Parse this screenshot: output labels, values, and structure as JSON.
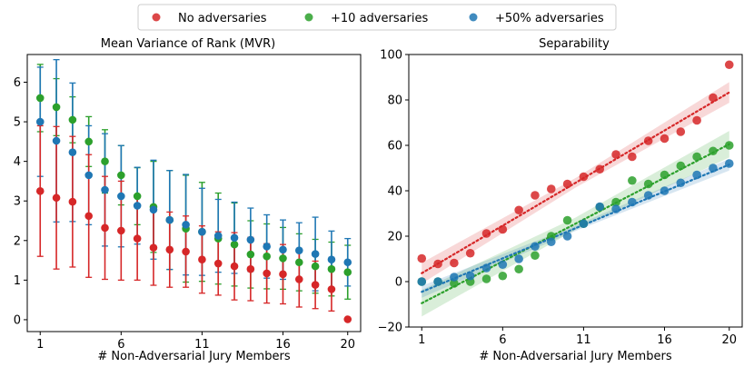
{
  "legend": {
    "position": "top-center",
    "items": [
      {
        "label": "No adversaries",
        "color": "#d62728"
      },
      {
        "label": "+10 adversaries",
        "color": "#2ca02c"
      },
      {
        "label": "+50% adversaries",
        "color": "#1f77b4"
      }
    ]
  },
  "chart_data": [
    {
      "type": "errorbar",
      "title": "Mean Variance of Rank (MVR)",
      "xlabel": "# Non-Adversarial Jury Members",
      "ylabel": "",
      "xlim": [
        0.2,
        20.8
      ],
      "ylim": [
        -0.3,
        6.7
      ],
      "xticks": [
        1,
        6,
        11,
        16,
        20
      ],
      "yticks": [
        0,
        1,
        2,
        3,
        4,
        5,
        6
      ],
      "x": [
        1,
        2,
        3,
        4,
        5,
        6,
        7,
        8,
        9,
        10,
        11,
        12,
        13,
        14,
        15,
        16,
        17,
        18,
        19,
        20
      ],
      "series": [
        {
          "name": "+10 adversaries",
          "color": "#2ca02c",
          "values": [
            5.6,
            5.37,
            5.05,
            4.5,
            4.0,
            3.65,
            3.12,
            2.85,
            2.52,
            2.3,
            2.22,
            2.05,
            1.9,
            1.65,
            1.6,
            1.55,
            1.45,
            1.35,
            1.28,
            1.2
          ],
          "errors": [
            0.85,
            0.72,
            0.58,
            0.63,
            0.8,
            0.75,
            0.72,
            1.15,
            1.25,
            1.35,
            1.25,
            1.15,
            1.05,
            0.85,
            0.82,
            0.78,
            0.72,
            0.68,
            0.68,
            0.68
          ]
        },
        {
          "name": "+50% adversaries",
          "color": "#1f77b4",
          "values": [
            5.0,
            4.52,
            4.23,
            3.65,
            3.28,
            3.12,
            2.88,
            2.78,
            2.52,
            2.4,
            2.22,
            2.12,
            2.07,
            2.02,
            1.85,
            1.77,
            1.75,
            1.66,
            1.52,
            1.45
          ],
          "errors": [
            1.38,
            2.05,
            1.75,
            1.25,
            1.42,
            1.28,
            0.97,
            1.25,
            1.25,
            1.27,
            1.1,
            0.92,
            0.9,
            0.8,
            0.8,
            0.75,
            0.7,
            0.93,
            0.72,
            0.6
          ]
        },
        {
          "name": "No adversaries",
          "color": "#d62728",
          "values": [
            3.25,
            3.08,
            2.98,
            2.62,
            2.32,
            2.25,
            2.05,
            1.82,
            1.77,
            1.72,
            1.52,
            1.42,
            1.35,
            1.28,
            1.17,
            1.15,
            1.02,
            0.88,
            0.77,
            0.01
          ],
          "errors": [
            1.65,
            1.8,
            1.65,
            1.55,
            1.3,
            1.25,
            1.05,
            0.95,
            0.95,
            0.9,
            0.85,
            0.8,
            0.85,
            0.8,
            0.75,
            0.75,
            0.7,
            0.6,
            0.55,
            0.01
          ]
        }
      ]
    },
    {
      "type": "scatter",
      "title": "Separability",
      "xlabel": "# Non-Adversarial Jury Members",
      "ylabel": "",
      "xlim": [
        0.2,
        20.8
      ],
      "ylim": [
        -20,
        100
      ],
      "xticks": [
        1,
        6,
        11,
        16,
        20
      ],
      "yticks": [
        -20,
        0,
        20,
        40,
        60,
        80,
        100
      ],
      "x": [
        1,
        2,
        3,
        4,
        5,
        6,
        7,
        8,
        9,
        10,
        11,
        12,
        13,
        14,
        15,
        16,
        17,
        18,
        19,
        20
      ],
      "series": [
        {
          "name": "No adversaries",
          "color": "#d62728",
          "values": [
            10.2,
            7.8,
            8.2,
            12.5,
            21.2,
            23.0,
            31.5,
            38.0,
            40.8,
            43.0,
            46.2,
            49.5,
            56.0,
            55.0,
            62.0,
            63.0,
            66.0,
            71.0,
            81.0,
            95.5
          ],
          "fit": [
            3.7,
            83.3
          ],
          "band": 3.5
        },
        {
          "name": "+10 adversaries",
          "color": "#2ca02c",
          "values": [
            0.0,
            0.0,
            -0.8,
            0.0,
            1.2,
            2.5,
            5.5,
            11.5,
            20.0,
            27.0,
            25.5,
            32.8,
            35.0,
            44.5,
            43.0,
            47.0,
            51.0,
            55.0,
            57.5,
            60.0
          ],
          "fit": [
            -9.5,
            60.5
          ],
          "band": 4.5
        },
        {
          "name": "+50% adversaries",
          "color": "#1f77b4",
          "values": [
            0.0,
            0.0,
            2.0,
            2.5,
            6.0,
            7.5,
            10.0,
            15.5,
            17.5,
            20.0,
            25.5,
            33.0,
            32.0,
            35.0,
            38.0,
            40.0,
            43.5,
            47.0,
            50.0,
            52.0
          ],
          "fit": [
            -4.5,
            51.5
          ],
          "band": 2.0
        }
      ]
    }
  ]
}
